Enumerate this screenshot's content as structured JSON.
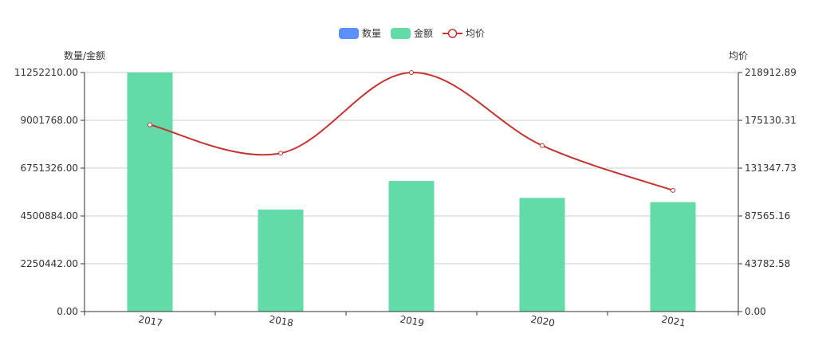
{
  "chart_data": {
    "type": "bar",
    "categories": [
      "2017",
      "2018",
      "2019",
      "2020",
      "2021"
    ],
    "legend": [
      "数量",
      "金额",
      "均价"
    ],
    "series": [
      {
        "name": "数量",
        "kind": "bar",
        "axis": "left",
        "color": "#5b8ff9",
        "values": [
          0,
          0,
          0,
          0,
          0
        ]
      },
      {
        "name": "金额",
        "kind": "bar",
        "axis": "left",
        "color": "#62dba8",
        "values": [
          11252210,
          4800000,
          6150000,
          5350000,
          5150000
        ]
      },
      {
        "name": "均价",
        "kind": "line",
        "axis": "right",
        "smooth": true,
        "color": "#c23531",
        "values": [
          171000,
          145000,
          218912.89,
          152000,
          111000
        ]
      }
    ],
    "y_left": {
      "label": "数量/金额",
      "ticks": [
        "0.00",
        "2250442.00",
        "4500884.00",
        "6751326.00",
        "9001768.00",
        "11252210.00"
      ],
      "min": 0,
      "max": 11252210
    },
    "y_right": {
      "label": "均价",
      "ticks": [
        "0.00",
        "43782.58",
        "87565.16",
        "131347.73",
        "175130.31",
        "218912.89"
      ],
      "min": 0,
      "max": 218912.89
    },
    "grid": true,
    "legend_position": "top-center",
    "x_tick_rotation": -10
  }
}
